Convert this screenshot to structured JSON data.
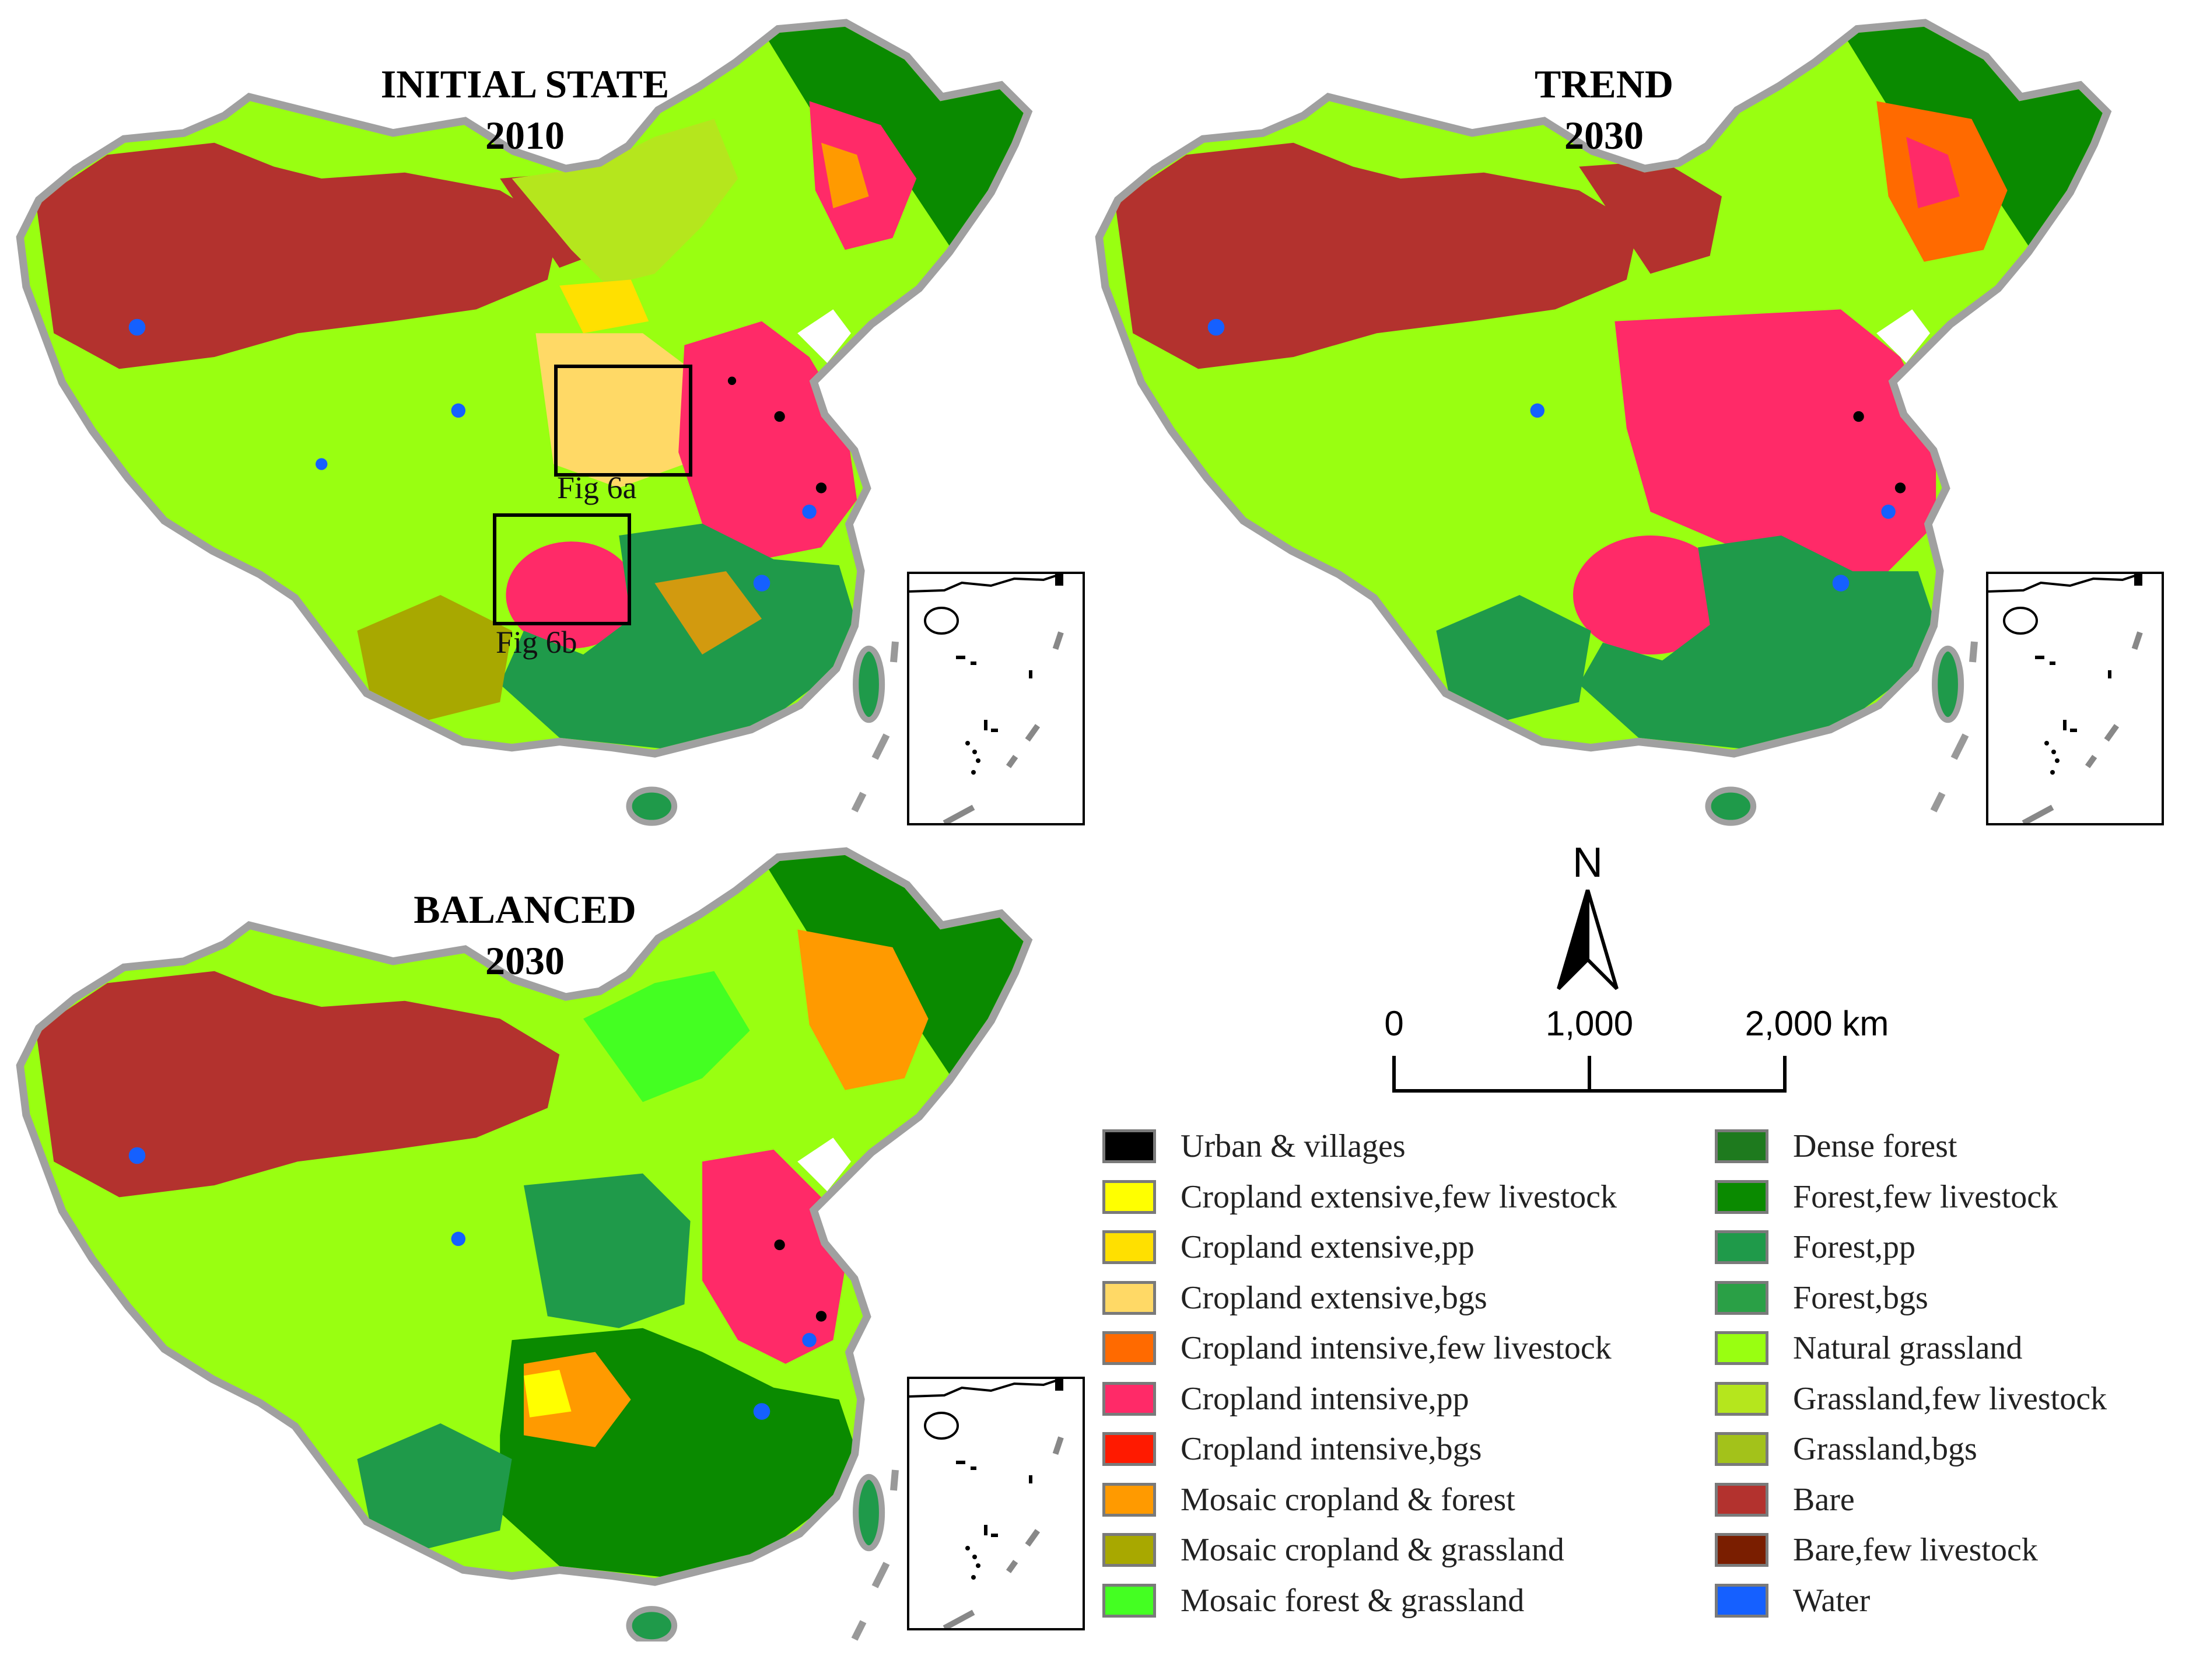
{
  "maps": [
    {
      "id": "initial",
      "title_line1": "INITIAL STATE",
      "title_line2": "2010",
      "boxes": [
        {
          "label": "Fig 6a"
        },
        {
          "label": "Fig 6b"
        }
      ]
    },
    {
      "id": "trend",
      "title_line1": "TREND",
      "title_line2": "2030",
      "boxes": []
    },
    {
      "id": "balanced",
      "title_line1": "BALANCED",
      "title_line2": "2030",
      "boxes": []
    }
  ],
  "north_arrow": {
    "label": "N"
  },
  "scale_bar": {
    "ticks": [
      "0",
      "1,000",
      "2,000 km"
    ]
  },
  "legend": {
    "left": [
      {
        "label": "Urban & villages",
        "color": "#000000"
      },
      {
        "label": "Cropland extensive,few livestock",
        "color": "#ffff00"
      },
      {
        "label": "Cropland extensive,pp",
        "color": "#ffe000"
      },
      {
        "label": "Cropland extensive,bgs",
        "color": "#ffd966"
      },
      {
        "label": "Cropland intensive,few livestock",
        "color": "#ff6a00"
      },
      {
        "label": "Cropland intensive,pp",
        "color": "#ff2a68"
      },
      {
        "label": "Cropland intensive,bgs",
        "color": "#ff1a00"
      },
      {
        "label": "Mosaic cropland & forest",
        "color": "#ff9a00"
      },
      {
        "label": "Mosaic cropland & grassland",
        "color": "#a8a800"
      },
      {
        "label": "Mosaic forest & grassland",
        "color": "#44ff22"
      }
    ],
    "right": [
      {
        "label": "Dense forest",
        "color": "#1e7a1e"
      },
      {
        "label": "Forest,few livestock",
        "color": "#0a8a00"
      },
      {
        "label": "Forest,pp",
        "color": "#1f9a4a"
      },
      {
        "label": "Forest,bgs",
        "color": "#2aa046"
      },
      {
        "label": "Natural grassland",
        "color": "#99ff11"
      },
      {
        "label": "Grassland,few livestock",
        "color": "#b5e61d"
      },
      {
        "label": "Grassland,bgs",
        "color": "#a3c21a"
      },
      {
        "label": "Bare",
        "color": "#b3322e"
      },
      {
        "label": "Bare,few livestock",
        "color": "#7a1e00"
      },
      {
        "label": "Water",
        "color": "#1560ff"
      }
    ]
  }
}
